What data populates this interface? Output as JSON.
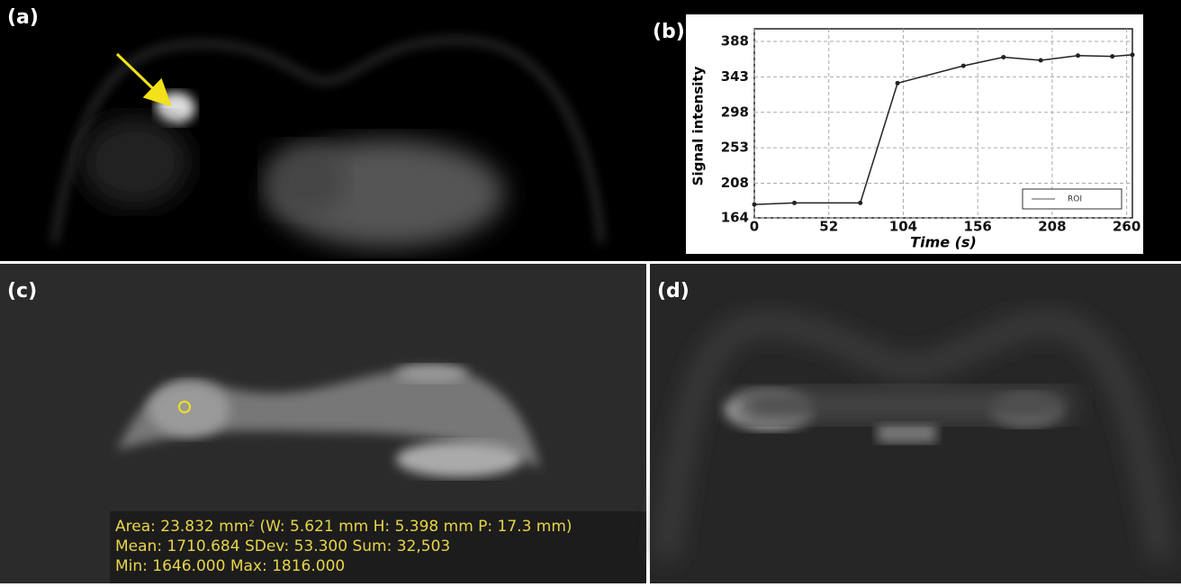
{
  "panels": [
    "(a)",
    "(b)",
    "(c)",
    "(d)"
  ],
  "measurement": [
    "Area: 23.832 mm² (W: 5.621 mm H: 5.398 mm P: 17.3 mm)",
    "Mean: 1710.684   SDev: 53.300   Sum: 32,503",
    "Min: 1646.000   Max: 1816.000"
  ],
  "chart_data": {
    "type": "line",
    "xlabel": "Time (s)",
    "ylabel": "Signal intensity",
    "x": [
      0,
      28,
      74,
      100,
      146,
      174,
      200,
      226,
      250,
      264
    ],
    "series": [
      {
        "name": "ROI",
        "color": "#222222",
        "values": [
          181,
          183,
          183,
          335,
          357,
          368,
          364,
          370,
          369,
          371
        ]
      }
    ],
    "xlim": [
      0,
      264
    ],
    "ylim": [
      164,
      404
    ],
    "xticks": [
      0,
      52,
      104,
      156,
      208,
      260
    ],
    "yticks": [
      164,
      208,
      253,
      298,
      343,
      388
    ],
    "grid": true,
    "legend": "lower right"
  }
}
